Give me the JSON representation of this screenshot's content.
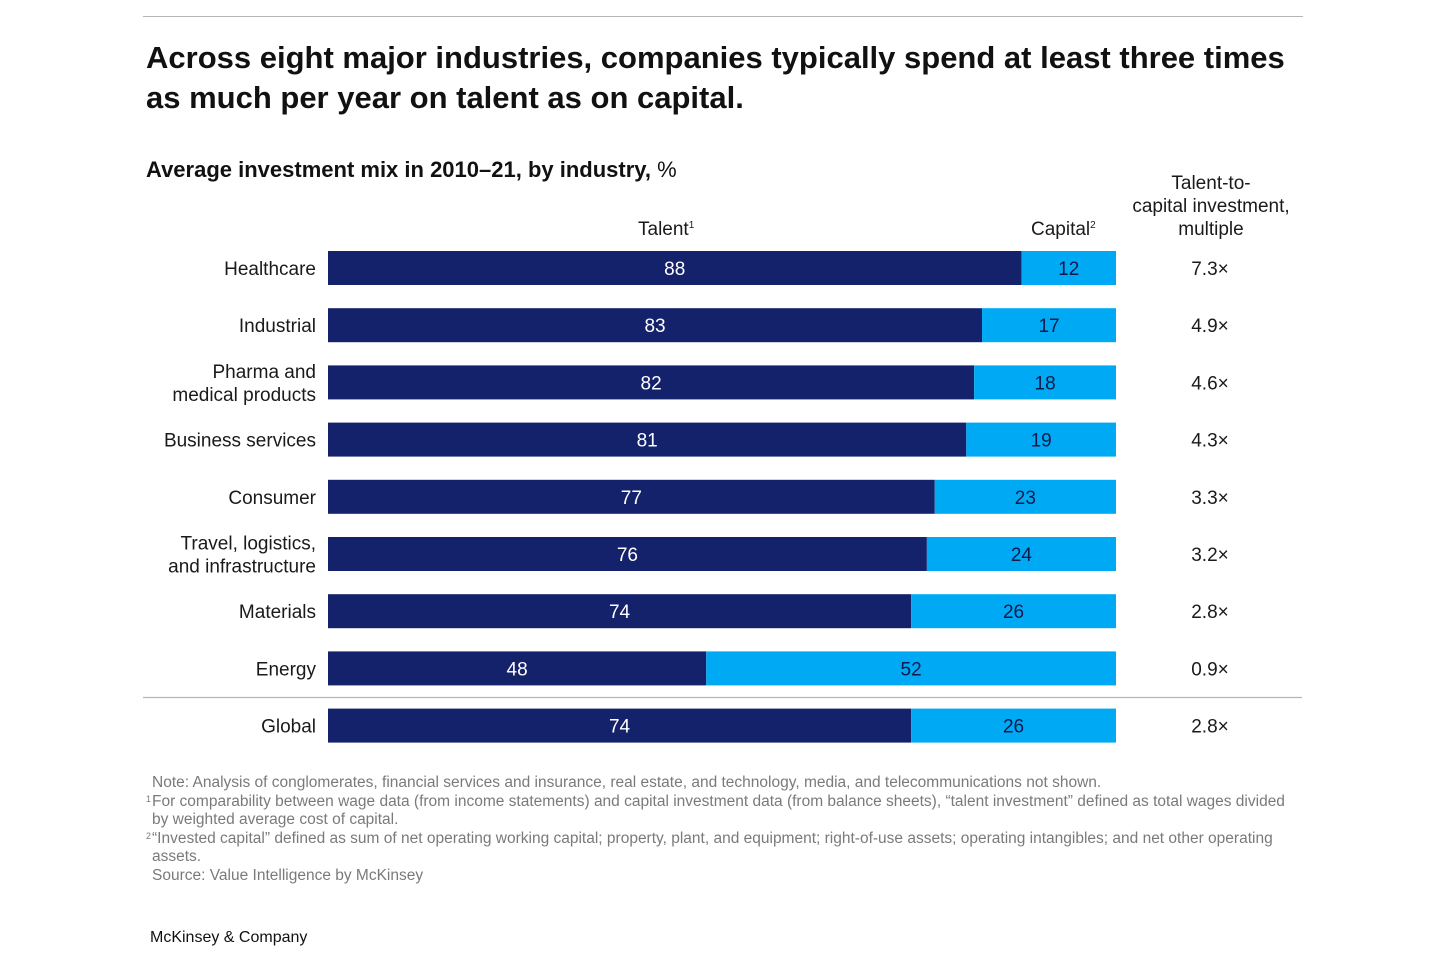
{
  "header": {
    "title": "Across eight major industries, companies typically spend at least three times as much per year on talent as on capital."
  },
  "chart_data": {
    "type": "bar",
    "orientation": "horizontal",
    "stacked": true,
    "title": "Average investment mix in 2010–21, by industry,",
    "unit": "%",
    "categories": [
      "Healthcare",
      "Industrial",
      "Pharma and medical products",
      "Business services",
      "Consumer",
      "Travel, logistics, and infrastructure",
      "Materials",
      "Energy",
      "Global"
    ],
    "category_display": [
      [
        "Healthcare"
      ],
      [
        "Industrial"
      ],
      [
        "Pharma and",
        "medical products"
      ],
      [
        "Business services"
      ],
      [
        "Consumer"
      ],
      [
        "Travel, logistics,",
        "and infrastructure"
      ],
      [
        "Materials"
      ],
      [
        "Energy"
      ],
      [
        "Global"
      ]
    ],
    "series": [
      {
        "name": "Talent",
        "footnote": "1",
        "color": "#14216b",
        "label_color": "#ffffff",
        "values": [
          88,
          83,
          82,
          81,
          77,
          76,
          74,
          48,
          74
        ]
      },
      {
        "name": "Capital",
        "footnote": "2",
        "color": "#00a9f4",
        "label_color": "#101a4a",
        "values": [
          12,
          17,
          18,
          19,
          23,
          24,
          26,
          52,
          26
        ]
      }
    ],
    "multiple": {
      "header": [
        "Talent-to-",
        "capital investment,",
        "multiple"
      ],
      "values": [
        "7.3×",
        "4.9×",
        "4.6×",
        "4.3×",
        "3.3×",
        "3.2×",
        "2.8×",
        "0.9×",
        "2.8×"
      ]
    },
    "xlim": [
      0,
      100
    ],
    "legend": "column headers above bars",
    "grid": false
  },
  "notes": [
    {
      "sup": "",
      "text": "Note: Analysis of conglomerates, financial services and insurance, real estate, and technology, media, and telecommunications not shown."
    },
    {
      "sup": "1",
      "text": "For comparability between wage data (from income statements) and capital investment data (from balance sheets), “talent investment” defined as total wages divided by weighted average cost of capital."
    },
    {
      "sup": "2",
      "text": "“Invested capital” defined as sum of net operating working capital; property, plant, and equipment; right-of-use assets; operating intangibles; and net other operating assets."
    },
    {
      "sup": "",
      "text": "Source: Value Intelligence by McKinsey"
    }
  ],
  "footer": {
    "brand": "McKinsey & Company"
  }
}
